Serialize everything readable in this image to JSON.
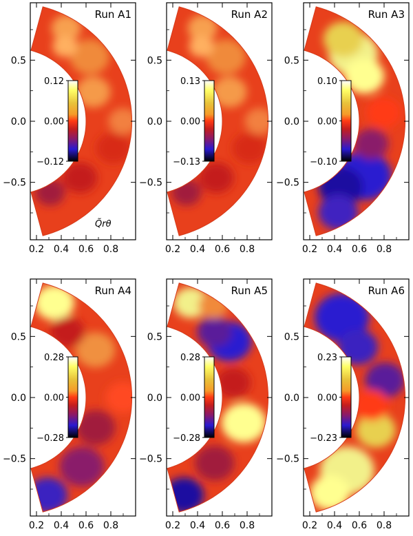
{
  "figure": {
    "quantity_label": "Q̃rθ"
  },
  "chart_data": [
    {
      "type": "heatmap",
      "title": "Run A1",
      "x_ticks": [
        "0.2",
        "0.4",
        "0.6",
        "0.8"
      ],
      "y_ticks": [
        "0.5",
        "0.0",
        "−0.5"
      ],
      "xlim": [
        0.15,
        1.0
      ],
      "ylim": [
        -0.97,
        0.97
      ],
      "colorbar": {
        "max_label": "0.12",
        "mid_label": "0.00",
        "min_label": "−0.12",
        "max": 0.12,
        "min": -0.12
      },
      "pattern": "weak-mixed"
    },
    {
      "type": "heatmap",
      "title": "Run A2",
      "x_ticks": [
        "0.2",
        "0.4",
        "0.6",
        "0.8"
      ],
      "y_ticks": [
        "0.5",
        "0.0",
        "−0.5"
      ],
      "xlim": [
        0.15,
        1.0
      ],
      "ylim": [
        -0.97,
        0.97
      ],
      "colorbar": {
        "max_label": "0.13",
        "mid_label": "0.00",
        "min_label": "−0.13",
        "max": 0.13,
        "min": -0.13
      },
      "pattern": "weak-mixed"
    },
    {
      "type": "heatmap",
      "title": "Run A3",
      "x_ticks": [
        "0.2",
        "0.4",
        "0.6",
        "0.8"
      ],
      "y_ticks": [
        "0.5",
        "0.0",
        "−0.5"
      ],
      "xlim": [
        0.15,
        1.0
      ],
      "ylim": [
        -0.97,
        0.97
      ],
      "colorbar": {
        "max_label": "0.10",
        "mid_label": "0.00",
        "min_label": "−0.10",
        "max": 0.1,
        "min": -0.1
      },
      "pattern": "positive-north-negative-south"
    },
    {
      "type": "heatmap",
      "title": "Run A4",
      "x_ticks": [
        "0.2",
        "0.4",
        "0.6",
        "0.8"
      ],
      "y_ticks": [
        "0.5",
        "0.0",
        "−0.5"
      ],
      "xlim": [
        0.15,
        1.0
      ],
      "ylim": [
        -0.97,
        0.97
      ],
      "colorbar": {
        "max_label": "0.28",
        "mid_label": "0.00",
        "min_label": "−0.28",
        "max": 0.28,
        "min": -0.28
      },
      "pattern": "polar-positive-southern-negative"
    },
    {
      "type": "heatmap",
      "title": "Run A5",
      "x_ticks": [
        "0.2",
        "0.4",
        "0.6",
        "0.8"
      ],
      "y_ticks": [
        "0.5",
        "0.0",
        "−0.5"
      ],
      "xlim": [
        0.15,
        1.0
      ],
      "ylim": [
        -0.97,
        0.97
      ],
      "colorbar": {
        "max_label": "0.28",
        "mid_label": "0.00",
        "min_label": "−0.28",
        "max": 0.28,
        "min": -0.28
      },
      "pattern": "cells-alternating"
    },
    {
      "type": "heatmap",
      "title": "Run A6",
      "x_ticks": [
        "0.2",
        "0.4",
        "0.6",
        "0.8"
      ],
      "y_ticks": [
        "0.5",
        "0.0",
        "−0.5"
      ],
      "xlim": [
        0.15,
        1.0
      ],
      "ylim": [
        -0.97,
        0.97
      ],
      "colorbar": {
        "max_label": "0.23",
        "mid_label": "0.00",
        "min_label": "−0.23",
        "max": 0.23,
        "min": -0.23
      },
      "pattern": "negative-north-positive-south"
    }
  ]
}
